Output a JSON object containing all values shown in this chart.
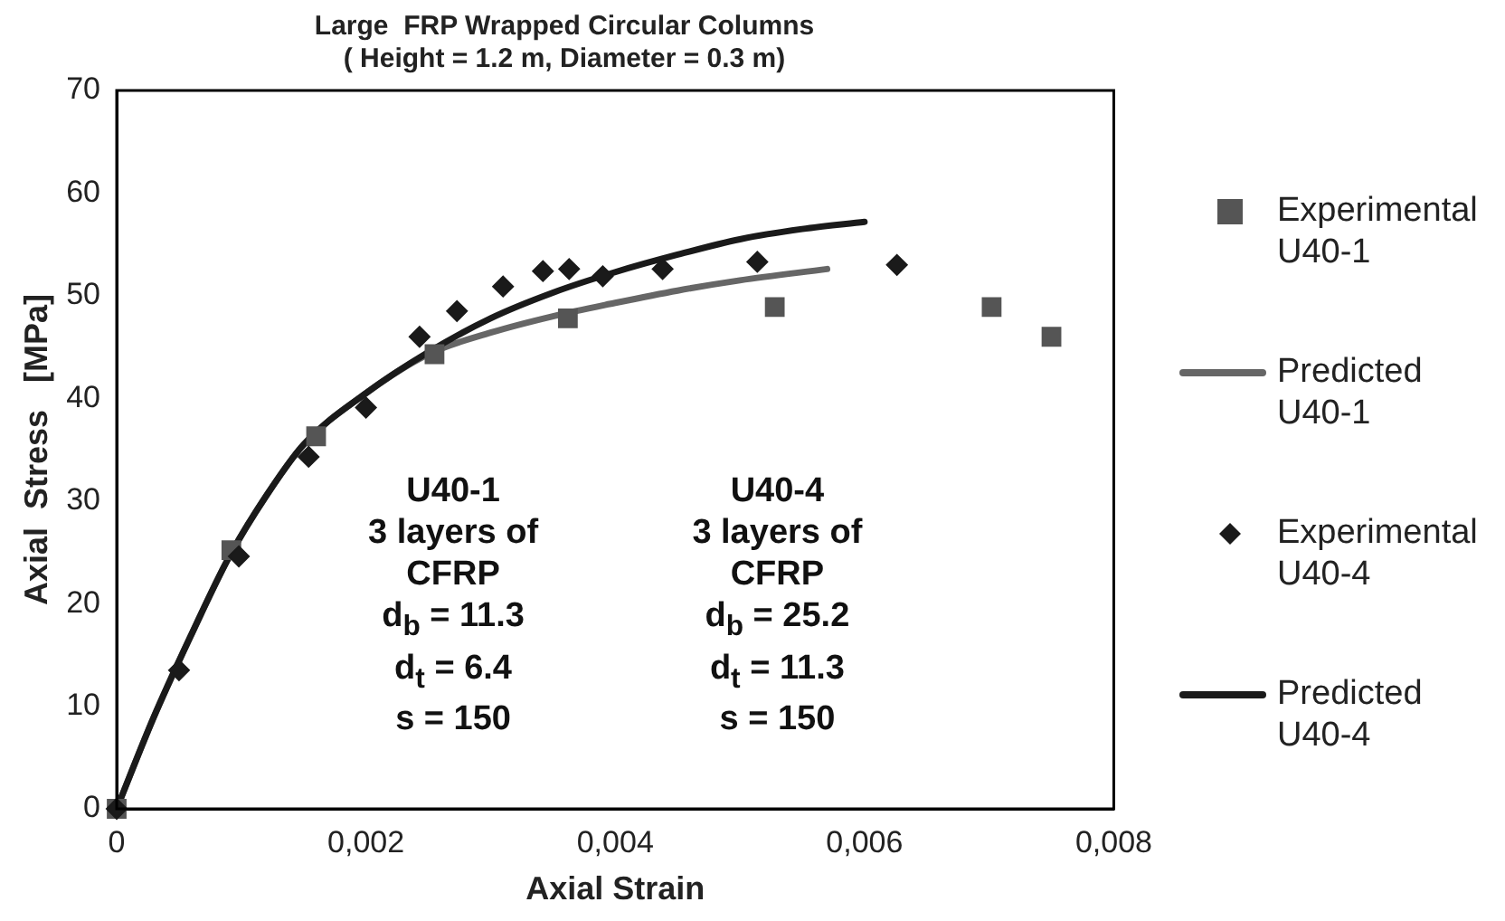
{
  "chart_data": {
    "type": "scatter",
    "title": "Large  FRP Wrapped Circular Columns\n( Height = 1.2 m, Diameter = 0.3 m)",
    "xlabel": "Axial Strain",
    "ylabel": "Axial  Stress   [MPa]",
    "xlim": [
      0,
      0.008
    ],
    "xticks": [
      0,
      {
        "value": 0.002,
        "label": "0,002"
      },
      {
        "value": 0.004,
        "label": "0,004"
      },
      {
        "value": 0.006,
        "label": "0,006"
      },
      {
        "value": 0.008,
        "label": "0,008"
      }
    ],
    "ylim": [
      0,
      70
    ],
    "yticks": [
      0,
      10,
      20,
      30,
      40,
      50,
      60,
      70
    ],
    "grid": false,
    "legend": "right",
    "series": [
      {
        "name": "Experimental U40-1",
        "marker": "square",
        "color": "#555555",
        "x": [
          0,
          0.00092,
          0.0016,
          0.00255,
          0.00362,
          0.00528,
          0.00702,
          0.0075
        ],
        "values": [
          0,
          25.2,
          36.3,
          44.3,
          47.8,
          48.9,
          48.9,
          46
        ]
      },
      {
        "name": "Predicted U40-1",
        "type": "line",
        "marker": "none",
        "color": "#666666",
        "x": [
          0,
          0.0003,
          0.0006,
          0.0009,
          0.0012,
          0.0015,
          0.002,
          0.0025,
          0.003,
          0.0035,
          0.004,
          0.0045,
          0.005,
          0.0057
        ],
        "values": [
          0,
          9,
          17,
          24.5,
          30.5,
          35.5,
          40.5,
          44.3,
          46.4,
          48,
          49.3,
          50.5,
          51.5,
          52.6
        ]
      },
      {
        "name": "Experimental U40-4",
        "marker": "diamond",
        "color": "#1a1a1a",
        "x": [
          0,
          0.0005,
          0.00098,
          0.00154,
          0.002,
          0.00243,
          0.00273,
          0.0031,
          0.00342,
          0.00363,
          0.0039,
          0.00438,
          0.00514,
          0.00626
        ],
        "values": [
          0,
          13.5,
          24.6,
          34.3,
          39.1,
          46,
          48.5,
          50.9,
          52.4,
          52.6,
          51.9,
          52.6,
          53.3,
          53
        ]
      },
      {
        "name": "Predicted U40-4",
        "type": "line",
        "marker": "none",
        "color": "#1a1a1a",
        "x": [
          0,
          0.0003,
          0.0006,
          0.0009,
          0.0012,
          0.0015,
          0.002,
          0.0025,
          0.003,
          0.0035,
          0.004,
          0.0045,
          0.005,
          0.0055,
          0.006
        ],
        "values": [
          0,
          9,
          17,
          24.5,
          30.5,
          35.5,
          40.5,
          44.5,
          47.8,
          50.3,
          52.3,
          54,
          55.5,
          56.5,
          57.2
        ]
      }
    ],
    "annotations": [
      "U40-1\n3 layers of\nCFRP\nd$_{b}$ = 11.3\nd$_{t}$ = 6.4\ns = 150",
      "U40-4\n3 layers of\nCFRP\nd$_{b}$ = 25.2\nd$_{t}$ = 11.3\ns = 150"
    ]
  }
}
